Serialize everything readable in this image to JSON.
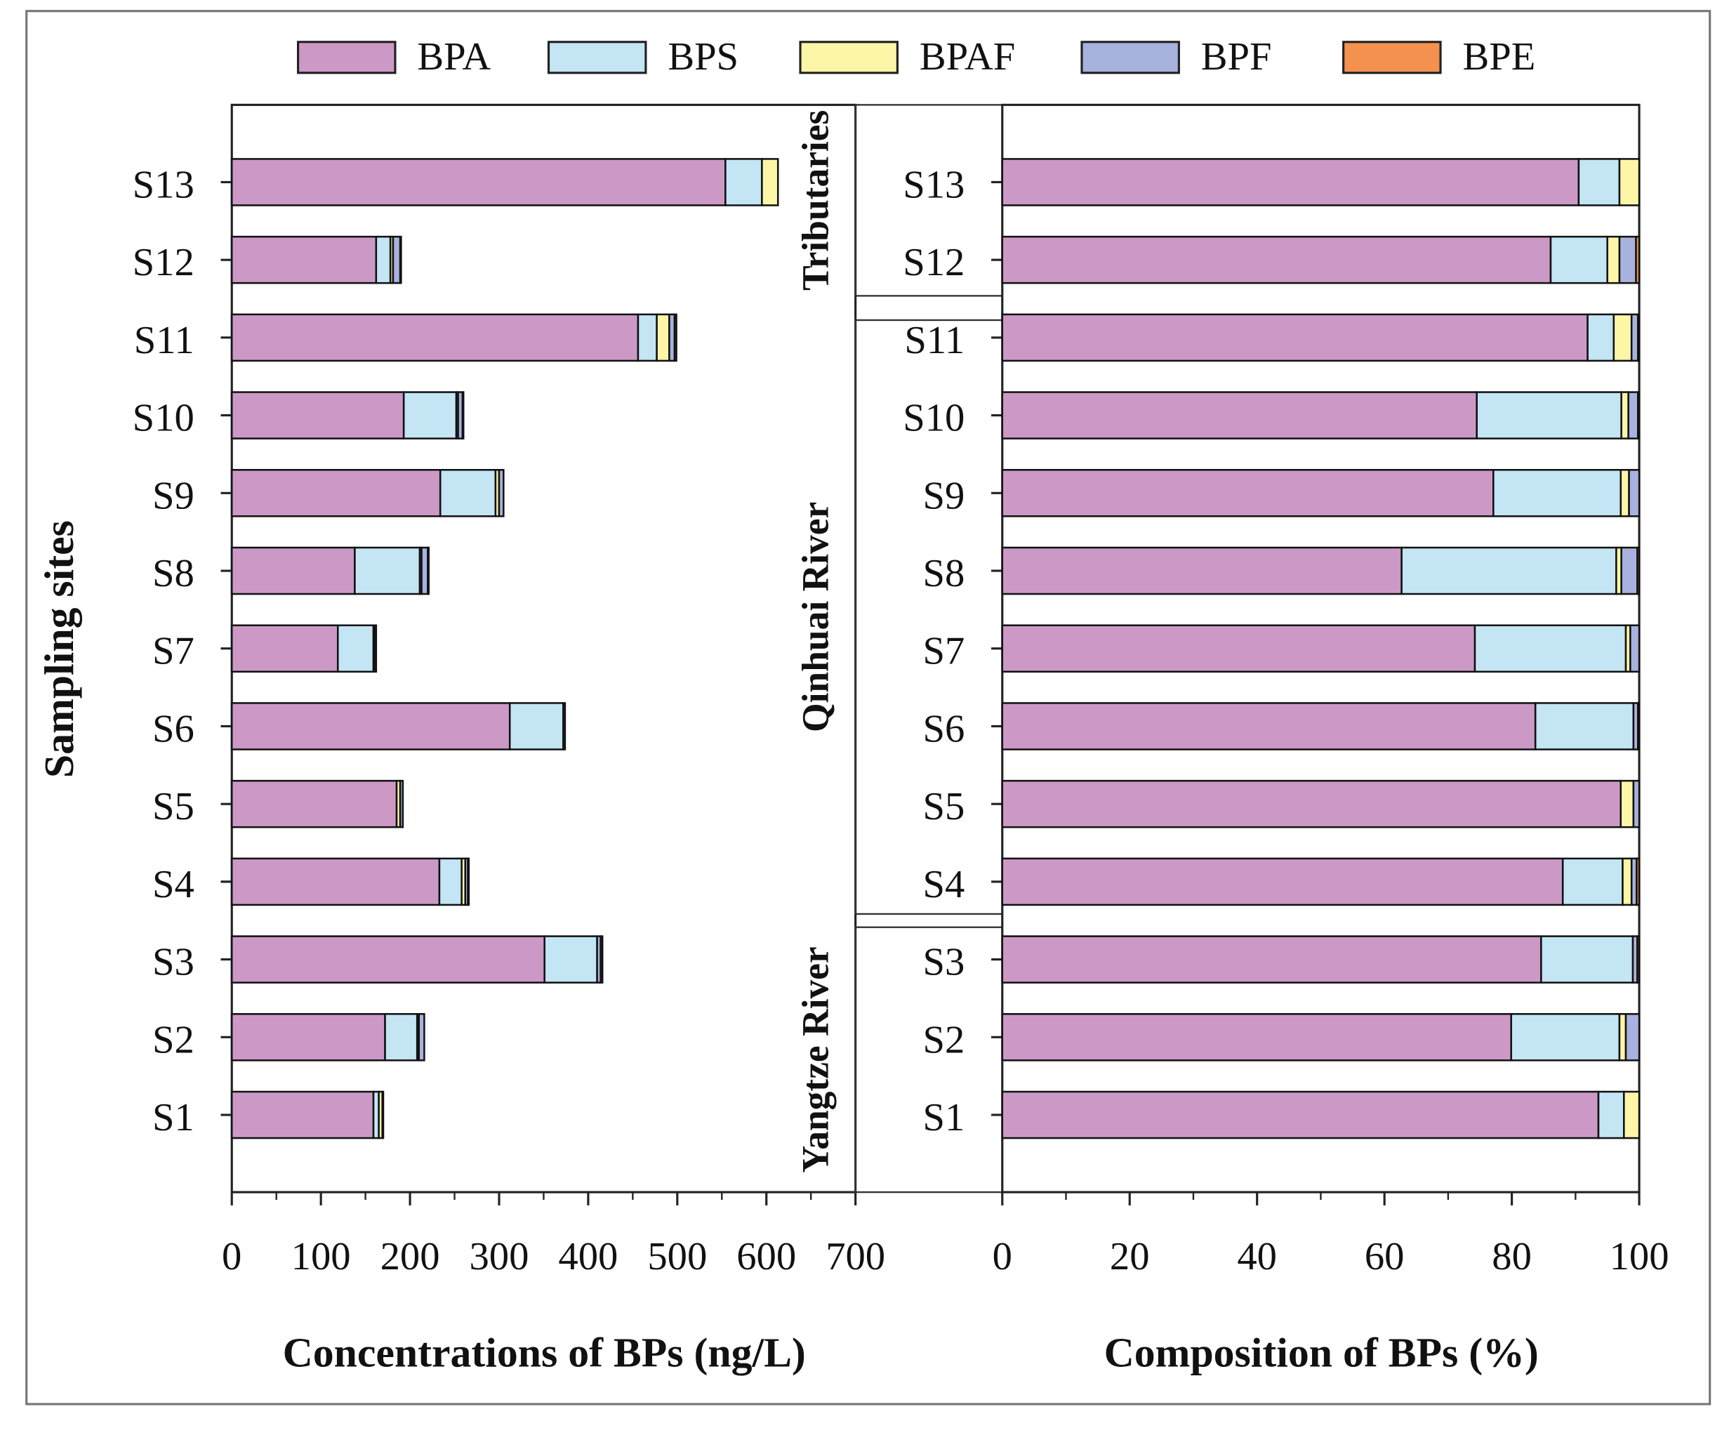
{
  "legend": [
    {
      "name": "BPA",
      "color": "#cc99c6"
    },
    {
      "name": "BPS",
      "color": "#c3e5f4"
    },
    {
      "name": "BPAF",
      "color": "#fdf6a6"
    },
    {
      "name": "BPF",
      "color": "#a8b2de"
    },
    {
      "name": "BPE",
      "color": "#f4914f"
    }
  ],
  "chart_data": [
    {
      "type": "bar",
      "orientation": "horizontal-stacked",
      "title": "",
      "xlabel": "Concentrations of BPs (ng/L)",
      "ylabel": "Sampling sites",
      "xlim": [
        0,
        700
      ],
      "xticks": [
        "0",
        "100",
        "200",
        "300",
        "400",
        "500",
        "600",
        "700"
      ],
      "categories": [
        "S1",
        "S2",
        "S3",
        "S4",
        "S5",
        "S6",
        "S7",
        "S8",
        "S9",
        "S10",
        "S11",
        "S12",
        "S13"
      ],
      "series": [
        {
          "name": "BPA",
          "values": [
            159,
            172,
            351,
            233,
            185,
            312,
            119,
            138,
            234,
            193,
            456,
            162,
            554
          ]
        },
        {
          "name": "BPS",
          "values": [
            6,
            36,
            59,
            25,
            0,
            60,
            40,
            73,
            62,
            59,
            21,
            16,
            41
          ]
        },
        {
          "name": "BPAF",
          "values": [
            4,
            2,
            0,
            4,
            4,
            0,
            1,
            2,
            4,
            2,
            14,
            3,
            18
          ]
        },
        {
          "name": "BPF",
          "values": [
            1,
            6,
            4,
            3,
            3,
            2,
            2,
            7,
            5,
            5,
            6,
            8,
            0
          ]
        },
        {
          "name": "BPE",
          "values": [
            0,
            0,
            2,
            1,
            0,
            0,
            0,
            1,
            0,
            1,
            2,
            1,
            0
          ]
        }
      ]
    },
    {
      "type": "bar",
      "orientation": "horizontal-stacked",
      "title": "",
      "xlabel": "Composition of BPs (%)",
      "xlim": [
        0,
        100
      ],
      "xticks": [
        "0",
        "20",
        "40",
        "60",
        "80",
        "100"
      ],
      "categories": [
        "S1",
        "S2",
        "S3",
        "S4",
        "S5",
        "S6",
        "S7",
        "S8",
        "S9",
        "S10",
        "S11",
        "S12",
        "S13"
      ],
      "series": [
        {
          "name": "BPA",
          "values": [
            93.6,
            79.9,
            84.6,
            88.0,
            97.1,
            83.7,
            74.2,
            62.7,
            77.1,
            74.5,
            91.9,
            86.1,
            90.5
          ]
        },
        {
          "name": "BPS",
          "values": [
            4.0,
            17.0,
            14.4,
            9.4,
            0,
            15.4,
            23.7,
            33.7,
            20.0,
            22.7,
            4.1,
            8.9,
            6.4
          ]
        },
        {
          "name": "BPAF",
          "values": [
            2.4,
            1.0,
            0,
            1.4,
            2.0,
            0,
            0.7,
            0.8,
            1.3,
            1.1,
            2.8,
            1.9,
            3.1
          ]
        },
        {
          "name": "BPF",
          "values": [
            0,
            2.1,
            0.7,
            0.8,
            0.9,
            0.7,
            1.4,
            2.5,
            1.6,
            1.5,
            1.0,
            2.6,
            0
          ]
        },
        {
          "name": "BPE",
          "values": [
            0,
            0,
            0.3,
            0.4,
            0,
            0.2,
            0,
            0.3,
            0,
            0.2,
            0.2,
            0.5,
            0
          ]
        }
      ]
    }
  ],
  "groups": [
    {
      "label": "Tributaries",
      "sites": [
        "S12",
        "S13"
      ]
    },
    {
      "label": "Qinhuai River",
      "sites": [
        "S4",
        "S5",
        "S6",
        "S7",
        "S8",
        "S9",
        "S10",
        "S11"
      ]
    },
    {
      "label": "Yangtze River",
      "sites": [
        "S1",
        "S2",
        "S3"
      ]
    }
  ]
}
